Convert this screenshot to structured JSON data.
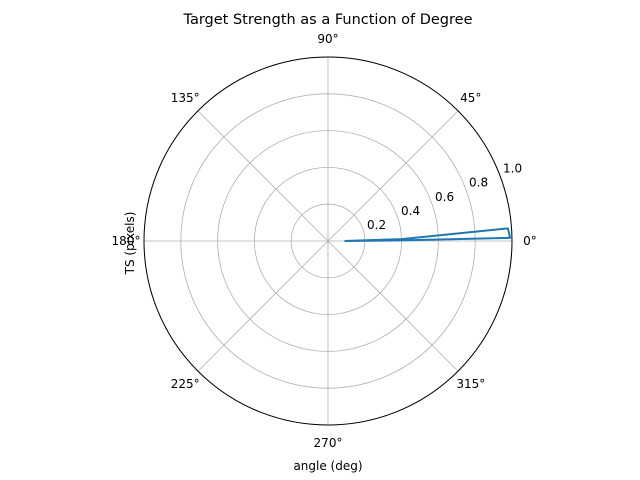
{
  "chart_data": {
    "type": "polar-line",
    "title": "Target Strength as a Function of Degree",
    "xlabel": "angle (deg)",
    "ylabel": "TS (pixels)",
    "theta_tick_labels": [
      "0°",
      "45°",
      "90°",
      "135°",
      "180°",
      "225°",
      "270°",
      "315°"
    ],
    "theta_ticks_deg": [
      0,
      45,
      90,
      135,
      180,
      225,
      270,
      315
    ],
    "r_tick_labels": [
      "0.2",
      "0.4",
      "0.6",
      "0.8",
      "1.0"
    ],
    "r_ticks": [
      0.2,
      0.4,
      0.6,
      0.8,
      1.0
    ],
    "rlim": [
      0,
      1.0
    ],
    "grid": true,
    "series": [
      {
        "color": "#1f77b4",
        "points": [
          {
            "theta_deg": 0,
            "r": 0.09
          },
          {
            "theta_deg": 1.5,
            "r": 0.4
          },
          {
            "theta_deg": 4.0,
            "r": 0.98
          },
          {
            "theta_deg": 1.0,
            "r": 0.99
          },
          {
            "theta_deg": 0.5,
            "r": 0.4
          },
          {
            "theta_deg": 0,
            "r": 0.09
          }
        ]
      }
    ]
  }
}
